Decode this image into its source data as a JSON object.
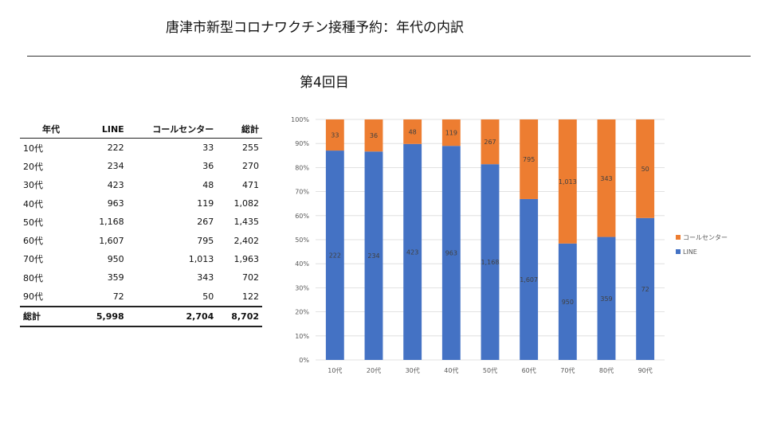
{
  "title": "唐津市新型コロナワクチン接種予約：年代の内訳",
  "subtitle": "第4回目",
  "table": {
    "headers": [
      "年代",
      "LINE",
      "コールセンター",
      "総計"
    ],
    "rows": [
      [
        "10代",
        "222",
        "33",
        "255"
      ],
      [
        "20代",
        "234",
        "36",
        "270"
      ],
      [
        "30代",
        "423",
        "48",
        "471"
      ],
      [
        "40代",
        "963",
        "119",
        "1,082"
      ],
      [
        "50代",
        "1,168",
        "267",
        "1,435"
      ],
      [
        "60代",
        "1,607",
        "795",
        "2,402"
      ],
      [
        "70代",
        "950",
        "1,013",
        "1,963"
      ],
      [
        "80代",
        "359",
        "343",
        "702"
      ],
      [
        "90代",
        "72",
        "50",
        "122"
      ]
    ],
    "total": [
      "総計",
      "5,998",
      "2,704",
      "8,702"
    ]
  },
  "chart_data": {
    "type": "bar",
    "stacked": "percent",
    "categories": [
      "10代",
      "20代",
      "30代",
      "40代",
      "50代",
      "60代",
      "70代",
      "80代",
      "90代"
    ],
    "series": [
      {
        "name": "LINE",
        "color": "#4472C4",
        "values": [
          222,
          234,
          423,
          963,
          1168,
          1607,
          950,
          359,
          72
        ],
        "labels": [
          "222",
          "234",
          "423",
          "963",
          "1,168",
          "1,607",
          "950",
          "359",
          "72"
        ]
      },
      {
        "name": "コールセンター",
        "color": "#ED7D31",
        "values": [
          33,
          36,
          48,
          119,
          267,
          795,
          1013,
          343,
          50
        ],
        "labels": [
          "33",
          "36",
          "48",
          "119",
          "267",
          "795",
          "1,013",
          "343",
          "50"
        ]
      }
    ],
    "y_ticks": [
      "0%",
      "10%",
      "20%",
      "30%",
      "40%",
      "50%",
      "60%",
      "70%",
      "80%",
      "90%",
      "100%"
    ],
    "ylim": [
      0,
      100
    ],
    "grid": true,
    "legend_position": "right"
  }
}
